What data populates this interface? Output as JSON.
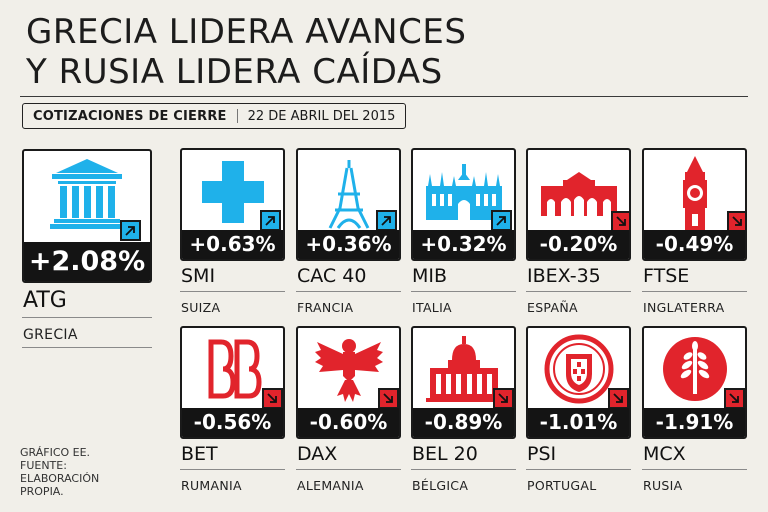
{
  "title": {
    "line1": "GRECIA LIDERA AVANCES",
    "line2": "Y RUSIA LIDERA CAÍDAS"
  },
  "subtitle": {
    "label": "COTIZACIONES DE CIERRE",
    "date": "22 DE ABRIL DEL 2015"
  },
  "colors": {
    "up": "#1fb1ea",
    "down": "#e1242c",
    "band": "#141414",
    "background": "#f1efe9"
  },
  "featured": {
    "change": "+2.08%",
    "index": "ATG",
    "country": "GRECIA",
    "direction": "up",
    "icon": "greek-temple-icon"
  },
  "indices": [
    {
      "change": "+0.63%",
      "index": "SMI",
      "country": "SUIZA",
      "direction": "up",
      "icon": "swiss-cross-icon"
    },
    {
      "change": "+0.36%",
      "index": "CAC 40",
      "country": "FRANCIA",
      "direction": "up",
      "icon": "eiffel-tower-icon"
    },
    {
      "change": "+0.32%",
      "index": "MIB",
      "country": "ITALIA",
      "direction": "up",
      "icon": "milan-cathedral-icon"
    },
    {
      "change": "-0.20%",
      "index": "IBEX-35",
      "country": "ESPAÑA",
      "direction": "down",
      "icon": "puerta-alcala-icon"
    },
    {
      "change": "-0.49%",
      "index": "FTSE",
      "country": "INGLATERRA",
      "direction": "down",
      "icon": "big-ben-icon"
    },
    {
      "change": "-0.56%",
      "index": "BET",
      "country": "RUMANIA",
      "direction": "down",
      "icon": "bet-logo-icon"
    },
    {
      "change": "-0.60%",
      "index": "DAX",
      "country": "ALEMANIA",
      "direction": "down",
      "icon": "german-eagle-icon"
    },
    {
      "change": "-0.89%",
      "index": "BEL 20",
      "country": "BÉLGICA",
      "direction": "down",
      "icon": "brussels-palace-icon"
    },
    {
      "change": "-1.01%",
      "index": "PSI",
      "country": "PORTUGAL",
      "direction": "down",
      "icon": "portugal-shield-icon"
    },
    {
      "change": "-1.91%",
      "index": "MCX",
      "country": "RUSIA",
      "direction": "down",
      "icon": "wheat-emblem-icon"
    }
  ],
  "footer": {
    "line1": "GRÁFICO EE.",
    "line2": "FUENTE:",
    "line3": "ELABORACIÓN",
    "line4": "PROPIA."
  }
}
